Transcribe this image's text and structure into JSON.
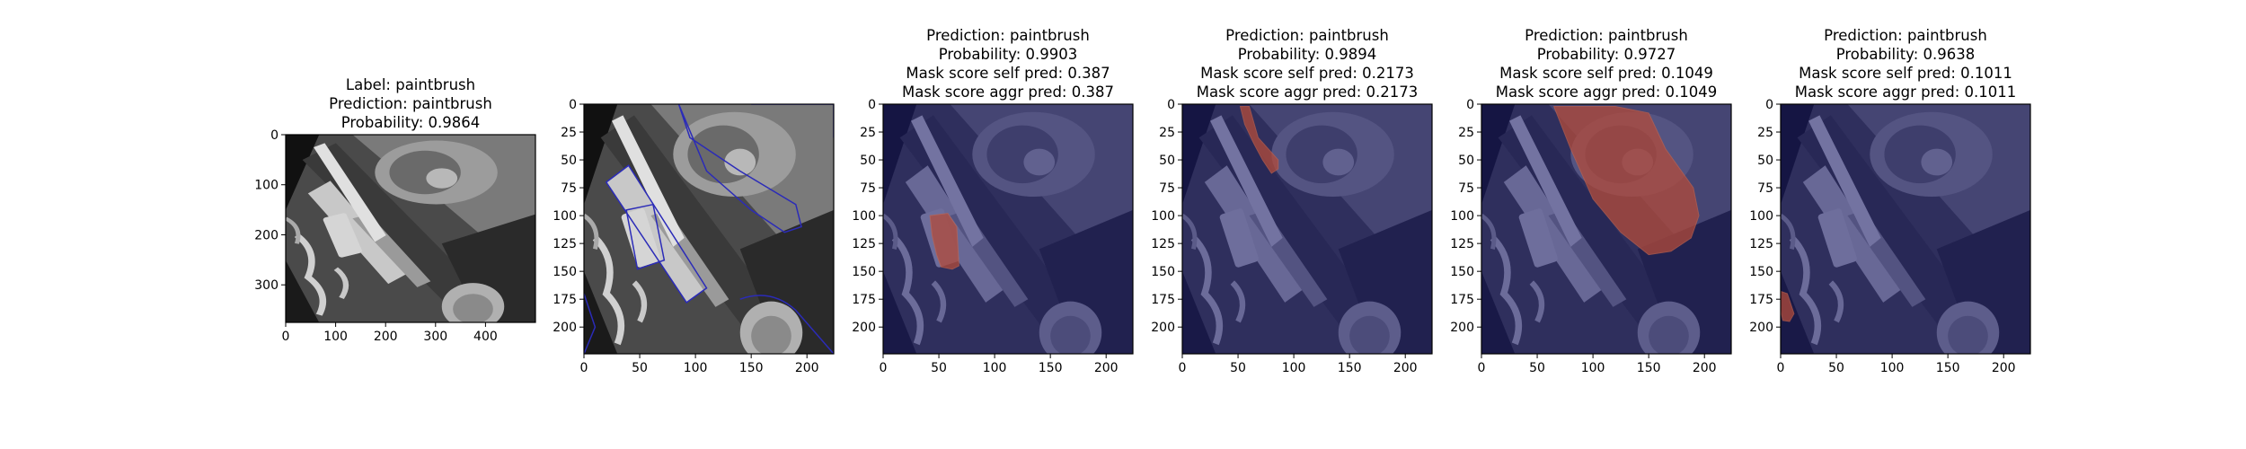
{
  "chart_data": [
    {
      "type": "image",
      "title_lines": [
        "Label: paintbrush",
        "Prediction: paintbrush",
        "Probability: 0.9864"
      ],
      "xticks": [
        "0",
        "100",
        "200",
        "300",
        "400"
      ],
      "yticks": [
        "0",
        "100",
        "200",
        "300"
      ],
      "xlim": [
        0,
        500
      ],
      "ylim": [
        375,
        0
      ],
      "xtick_values": [
        0,
        100,
        200,
        300,
        400
      ],
      "ytick_values": [
        0,
        100,
        200,
        300
      ],
      "image": "grayscale-photo",
      "overlay": "none"
    },
    {
      "type": "image",
      "title_lines": [],
      "xticks": [
        "0",
        "50",
        "100",
        "150",
        "200"
      ],
      "yticks": [
        "0",
        "25",
        "50",
        "75",
        "100",
        "125",
        "150",
        "175",
        "200"
      ],
      "xlim": [
        0,
        224
      ],
      "ylim": [
        224,
        0
      ],
      "xtick_values": [
        0,
        50,
        100,
        150,
        200
      ],
      "ytick_values": [
        0,
        25,
        50,
        75,
        100,
        125,
        150,
        175,
        200
      ],
      "image": "grayscale-photo-with-blue-contours",
      "overlay": "contours"
    },
    {
      "type": "image",
      "title_lines": [
        "Prediction: paintbrush",
        "Probability: 0.9903",
        "Mask score self pred: 0.387",
        "Mask score aggr pred: 0.387"
      ],
      "xticks": [
        "0",
        "50",
        "100",
        "150",
        "200"
      ],
      "yticks": [
        "0",
        "25",
        "50",
        "75",
        "100",
        "125",
        "150",
        "175",
        "200"
      ],
      "xlim": [
        0,
        224
      ],
      "ylim": [
        224,
        0
      ],
      "xtick_values": [
        0,
        50,
        100,
        150,
        200
      ],
      "ytick_values": [
        0,
        25,
        50,
        75,
        100,
        125,
        150,
        175,
        200
      ],
      "image": "blue-tinted-photo",
      "overlay": "red-mask",
      "mask": [
        [
          42,
          100
        ],
        [
          58,
          98
        ],
        [
          66,
          110
        ],
        [
          68,
          145
        ],
        [
          62,
          148
        ],
        [
          52,
          146
        ],
        [
          48,
          135
        ],
        [
          44,
          118
        ]
      ]
    },
    {
      "type": "image",
      "title_lines": [
        "Prediction: paintbrush",
        "Probability: 0.9894",
        "Mask score self pred: 0.2173",
        "Mask score aggr pred: 0.2173"
      ],
      "xticks": [
        "0",
        "50",
        "100",
        "150",
        "200"
      ],
      "yticks": [
        "0",
        "25",
        "50",
        "75",
        "100",
        "125",
        "150",
        "175",
        "200"
      ],
      "xlim": [
        0,
        224
      ],
      "ylim": [
        224,
        0
      ],
      "xtick_values": [
        0,
        50,
        100,
        150,
        200
      ],
      "ytick_values": [
        0,
        25,
        50,
        75,
        100,
        125,
        150,
        175,
        200
      ],
      "image": "blue-tinted-photo",
      "overlay": "red-mask",
      "mask": [
        [
          52,
          2
        ],
        [
          60,
          2
        ],
        [
          68,
          30
        ],
        [
          86,
          50
        ],
        [
          86,
          58
        ],
        [
          80,
          62
        ],
        [
          72,
          50
        ],
        [
          64,
          35
        ],
        [
          56,
          18
        ]
      ]
    },
    {
      "type": "image",
      "title_lines": [
        "Prediction: paintbrush",
        "Probability: 0.9727",
        "Mask score self pred: 0.1049",
        "Mask score aggr pred: 0.1049"
      ],
      "xticks": [
        "0",
        "50",
        "100",
        "150",
        "200"
      ],
      "yticks": [
        "0",
        "25",
        "50",
        "75",
        "100",
        "125",
        "150",
        "175",
        "200"
      ],
      "xlim": [
        0,
        224
      ],
      "ylim": [
        224,
        0
      ],
      "xtick_values": [
        0,
        50,
        100,
        150,
        200
      ],
      "ytick_values": [
        0,
        25,
        50,
        75,
        100,
        125,
        150,
        175,
        200
      ],
      "image": "blue-tinted-photo",
      "overlay": "red-mask",
      "mask": [
        [
          65,
          2
        ],
        [
          120,
          2
        ],
        [
          150,
          8
        ],
        [
          165,
          40
        ],
        [
          190,
          75
        ],
        [
          195,
          100
        ],
        [
          188,
          120
        ],
        [
          170,
          132
        ],
        [
          150,
          135
        ],
        [
          125,
          115
        ],
        [
          100,
          85
        ],
        [
          80,
          40
        ]
      ]
    },
    {
      "type": "image",
      "title_lines": [
        "Prediction: paintbrush",
        "Probability: 0.9638",
        "Mask score self pred: 0.1011",
        "Mask score aggr pred: 0.1011"
      ],
      "xticks": [
        "0",
        "50",
        "100",
        "150",
        "200"
      ],
      "yticks": [
        "0",
        "25",
        "50",
        "75",
        "100",
        "125",
        "150",
        "175",
        "200"
      ],
      "xlim": [
        0,
        224
      ],
      "ylim": [
        224,
        0
      ],
      "xtick_values": [
        0,
        50,
        100,
        150,
        200
      ],
      "ytick_values": [
        0,
        25,
        50,
        75,
        100,
        125,
        150,
        175,
        200
      ],
      "image": "blue-tinted-photo",
      "overlay": "red-mask",
      "mask": [
        [
          0,
          168
        ],
        [
          6,
          170
        ],
        [
          12,
          188
        ],
        [
          8,
          195
        ],
        [
          2,
          194
        ],
        [
          0,
          185
        ]
      ]
    }
  ],
  "colors": {
    "mask_red": "#b34b3a",
    "tint_blue": "#1a1a6e",
    "contour_blue": "#2b2bb8",
    "photo_dark": "#151515",
    "photo_mid": "#808080",
    "photo_light": "#d8d8d8"
  }
}
